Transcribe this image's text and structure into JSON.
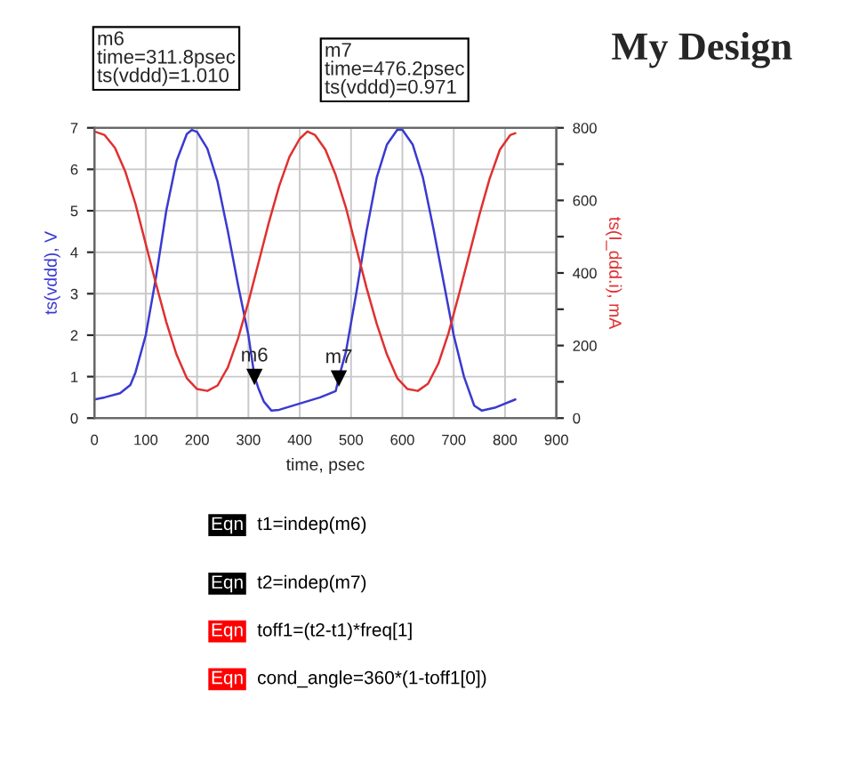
{
  "chart_data": {
    "type": "line",
    "title": "My Design",
    "xlabel": "time, psec",
    "ylabel": "ts(vddd), V",
    "y2label": "ts(I_ddd.i), mA",
    "xlim": [
      0,
      900
    ],
    "xticks": [
      0,
      100,
      200,
      300,
      400,
      500,
      600,
      700,
      800,
      900
    ],
    "ylim": [
      0,
      7
    ],
    "yticks": [
      0,
      1,
      2,
      3,
      4,
      5,
      6,
      7
    ],
    "y2lim": [
      0,
      800
    ],
    "y2ticks": [
      0,
      {
        "value": 100,
        "label": null
      },
      200,
      {
        "value": 300,
        "label": null
      },
      400,
      {
        "value": 500,
        "label": null
      },
      600,
      {
        "value": 700,
        "label": null
      },
      800
    ],
    "grid": true,
    "legend": false,
    "marker": "none",
    "line_style": "solid",
    "series": [
      {
        "color": "#3a3ad0",
        "x": [
          0,
          20,
          50,
          70,
          80,
          100,
          120,
          140,
          160,
          180,
          190,
          200,
          220,
          240,
          260,
          280,
          300,
          311.8,
          320,
          330,
          345,
          360,
          400,
          440,
          470,
          476.2,
          490,
          510,
          530,
          550,
          570,
          590,
          600,
          620,
          640,
          660,
          680,
          700,
          720,
          740,
          755,
          780,
          820
        ],
        "values": [
          0.45,
          0.5,
          0.6,
          0.8,
          1.1,
          2.0,
          3.4,
          5.0,
          6.2,
          6.85,
          6.95,
          6.9,
          6.5,
          5.7,
          4.5,
          3.2,
          2.0,
          1.01,
          0.7,
          0.4,
          0.18,
          0.2,
          0.35,
          0.5,
          0.65,
          0.971,
          1.6,
          3.0,
          4.5,
          5.8,
          6.6,
          6.95,
          6.95,
          6.6,
          5.8,
          4.6,
          3.3,
          2.0,
          1.0,
          0.3,
          0.18,
          0.25,
          0.45
        ]
      },
      {
        "color": "#e03030",
        "axis": "y2",
        "x": [
          0,
          20,
          40,
          60,
          80,
          100,
          120,
          140,
          160,
          180,
          200,
          220,
          240,
          260,
          280,
          300,
          320,
          340,
          360,
          380,
          400,
          415,
          430,
          450,
          470,
          490,
          510,
          530,
          550,
          570,
          590,
          610,
          630,
          650,
          670,
          690,
          710,
          730,
          750,
          770,
          790,
          810,
          820
        ],
        "values": [
          790,
          780,
          745,
          680,
          590,
          480,
          370,
          265,
          175,
          110,
          80,
          75,
          90,
          140,
          220,
          320,
          430,
          540,
          640,
          720,
          770,
          790,
          780,
          740,
          670,
          580,
          470,
          360,
          260,
          175,
          110,
          80,
          75,
          95,
          150,
          235,
          340,
          450,
          560,
          660,
          740,
          780,
          785
        ]
      }
    ],
    "annotations": [
      {
        "text": "m6",
        "x": 311.8,
        "y": 1.01
      },
      {
        "text": "m7",
        "x": 476.2,
        "y": 0.971
      },
      "m6\ntime=311.8psec\nts(vddd)=1.010",
      "m7\ntime=476.2psec\nts(vddd)=0.971",
      "Eqn t1=indep(m6)",
      "Eqn t2=indep(m7)",
      "Eqn toff1=(t2-t1)*freq[1]",
      "Eqn cond_angle=360*(1-toff1[0])"
    ]
  }
}
